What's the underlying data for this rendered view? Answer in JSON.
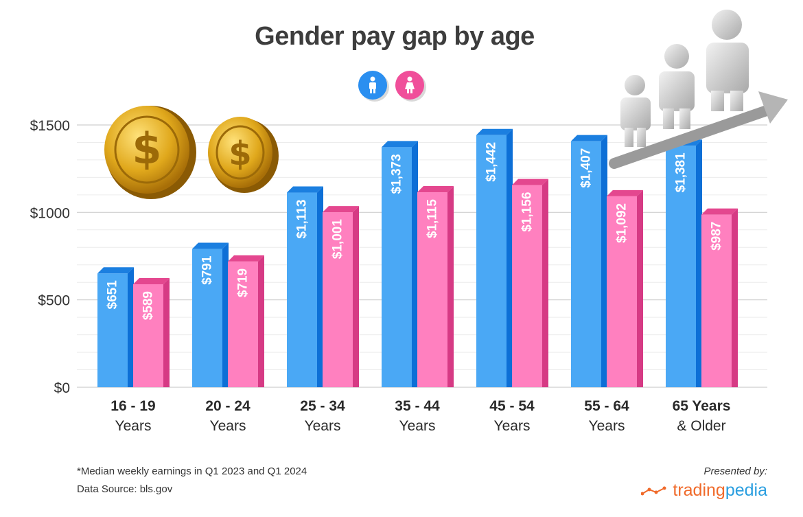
{
  "title": "Gender pay gap by age",
  "legend": {
    "male_icon": "male-person-icon",
    "female_icon": "female-person-icon"
  },
  "chart_data": {
    "type": "bar",
    "title": "Gender pay gap by age",
    "categories": [
      [
        "16 - 19",
        "Years"
      ],
      [
        "20 - 24",
        "Years"
      ],
      [
        "25 - 34",
        "Years"
      ],
      [
        "35 - 44",
        "Years"
      ],
      [
        "45 - 54",
        "Years"
      ],
      [
        "55 - 64",
        "Years"
      ],
      [
        "65 Years",
        "& Older"
      ]
    ],
    "series": [
      {
        "values": [
          651,
          791,
          1113,
          1373,
          1442,
          1407,
          1381
        ],
        "labels": [
          "$651",
          "$791",
          "$1,113",
          "$1,373",
          "$1,442",
          "$1,407",
          "$1,381"
        ],
        "color": "#4aa8f5"
      },
      {
        "values": [
          589,
          719,
          1001,
          1115,
          1156,
          1092,
          987
        ],
        "labels": [
          "$589",
          "$719",
          "$1,001",
          "$1,115",
          "$1,156",
          "$1,092",
          "$987"
        ],
        "color": "#ff80bf"
      }
    ],
    "ylim": [
      0,
      1500
    ],
    "yticks": [
      0,
      500,
      1000,
      1500
    ],
    "ytick_labels": [
      "$0",
      "$500",
      "$1000",
      "$1500"
    ],
    "grid": true
  },
  "footer": {
    "note": "*Median weekly earnings in Q1 2023 and Q1 2024",
    "source": "Data Source: bls.gov",
    "presented_by": "Presented by:",
    "brand_part1": "trading",
    "brand_part2": "pedia"
  },
  "colors": {
    "male_front": "#4aa8f5",
    "male_side": "#0d6fd6",
    "male_top": "#1b7fe0",
    "female_front": "#ff80bf",
    "female_side": "#d63a84",
    "female_top": "#e4478f"
  }
}
